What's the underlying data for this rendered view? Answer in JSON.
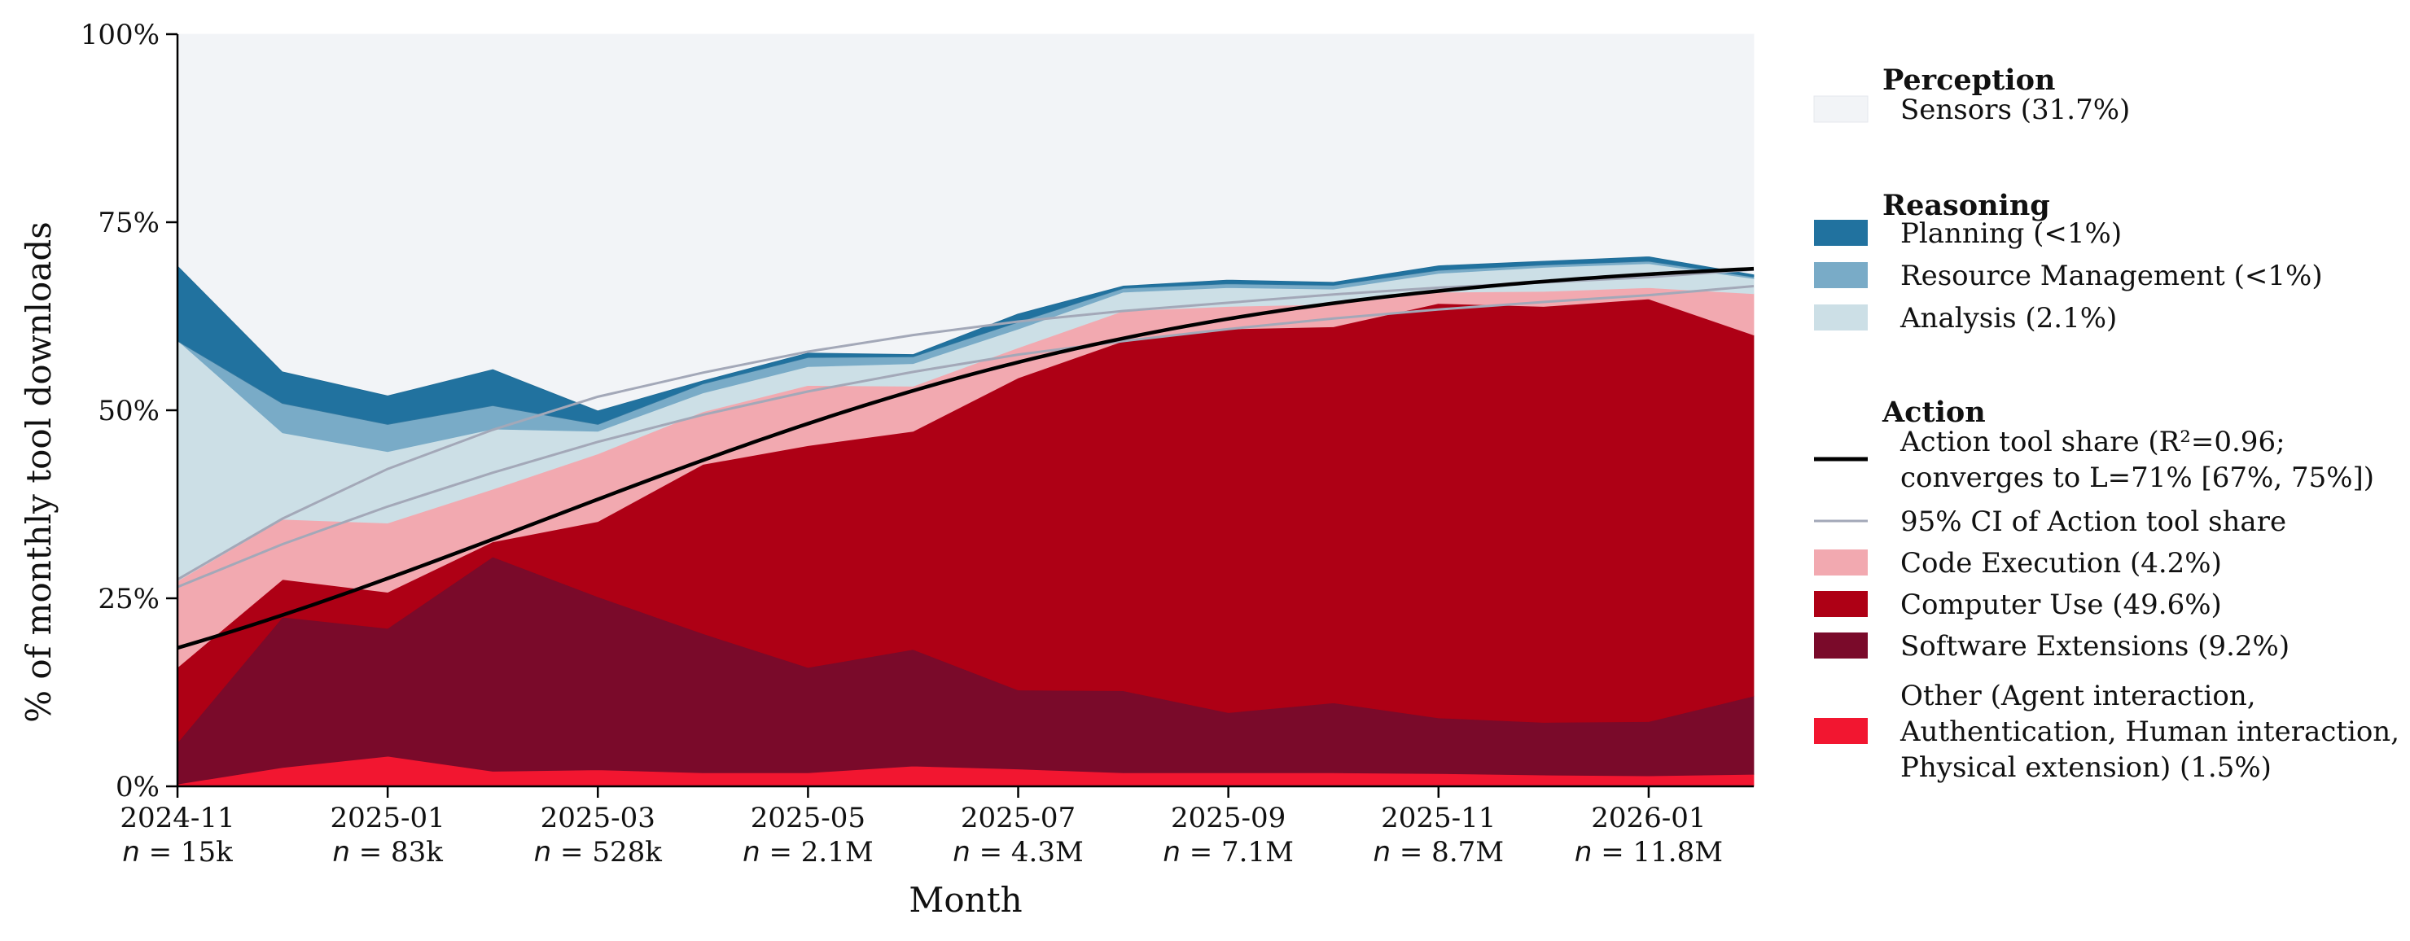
{
  "chart_data": {
    "type": "area",
    "subtype": "stacked-100-percent",
    "xlabel": "Month",
    "ylabel": "% of monthly tool downloads",
    "ylim": [
      0,
      100
    ],
    "y_ticks": [
      "0%",
      "25%",
      "50%",
      "75%",
      "100%"
    ],
    "y_tick_values": [
      0,
      25,
      50,
      75,
      100
    ],
    "months": [
      "2024-11",
      "2024-12",
      "2025-01",
      "2025-02",
      "2025-03",
      "2025-04",
      "2025-05",
      "2025-06",
      "2025-07",
      "2025-08",
      "2025-09",
      "2025-10",
      "2025-11",
      "2025-12",
      "2026-01",
      "2026-02"
    ],
    "x_ticks": [
      {
        "index": 0,
        "label": "2024-11",
        "n_prefix": "n",
        "n_value": "= 15k"
      },
      {
        "index": 2,
        "label": "2025-01",
        "n_prefix": "n",
        "n_value": "= 83k"
      },
      {
        "index": 4,
        "label": "2025-03",
        "n_prefix": "n",
        "n_value": "= 528k"
      },
      {
        "index": 6,
        "label": "2025-05",
        "n_prefix": "n",
        "n_value": "= 2.1M"
      },
      {
        "index": 8,
        "label": "2025-07",
        "n_prefix": "n",
        "n_value": "= 4.3M"
      },
      {
        "index": 10,
        "label": "2025-09",
        "n_prefix": "n",
        "n_value": "= 7.1M"
      },
      {
        "index": 12,
        "label": "2025-11",
        "n_prefix": "n",
        "n_value": "= 8.7M"
      },
      {
        "index": 14,
        "label": "2026-01",
        "n_prefix": "n",
        "n_value": "= 11.8M"
      }
    ],
    "series": [
      {
        "name": "Other (Agent interaction, Authentication, Human interaction, Physical extension)",
        "color": "#f21630",
        "values": [
          0.3,
          2.5,
          4.0,
          2.0,
          2.2,
          1.8,
          1.8,
          2.7,
          2.3,
          1.8,
          1.8,
          1.8,
          1.7,
          1.5,
          1.4,
          1.6
        ]
      },
      {
        "name": "Software Extensions",
        "color": "#7a0a2a",
        "values": [
          5.5,
          20.0,
          17.0,
          28.5,
          23.0,
          18.5,
          14.0,
          15.5,
          10.5,
          10.9,
          8.0,
          9.3,
          7.4,
          7.0,
          7.2,
          10.4
        ]
      },
      {
        "name": "Computer Use",
        "color": "#ae0015",
        "values": [
          10.0,
          5.0,
          4.8,
          2.0,
          10.0,
          22.5,
          29.5,
          29.0,
          41.5,
          46.5,
          51.0,
          50.0,
          55.1,
          55.3,
          56.2,
          48.0
        ]
      },
      {
        "name": "Code Execution",
        "color": "#f2a9b0",
        "values": [
          11.5,
          8.0,
          9.2,
          7.0,
          9.0,
          7.0,
          8.0,
          6.0,
          4.0,
          4.0,
          3.0,
          3.0,
          1.5,
          2.0,
          1.5,
          5.5
        ]
      },
      {
        "name": "Analysis",
        "color": "#ccdfe6",
        "values": [
          32.0,
          11.5,
          9.5,
          8.0,
          3.0,
          2.5,
          2.5,
          3.0,
          2.5,
          2.5,
          2.5,
          2.0,
          2.5,
          3.2,
          3.2,
          2.0
        ]
      },
      {
        "name": "Resource Management",
        "color": "#79abc7",
        "values": [
          0.0,
          4.0,
          3.7,
          3.2,
          1.0,
          1.3,
          1.3,
          1.0,
          1.0,
          0.6,
          0.6,
          0.6,
          0.5,
          0.4,
          0.4,
          0.3
        ]
      },
      {
        "name": "Planning",
        "color": "#21729f",
        "values": [
          10.0,
          4.2,
          3.8,
          4.8,
          1.8,
          0.4,
          0.6,
          0.3,
          1.1,
          0.3,
          0.5,
          0.4,
          0.6,
          0.5,
          0.6,
          0.3
        ]
      },
      {
        "name": "Sensors",
        "color": "#f2f4f7",
        "values": [
          30.7,
          44.8,
          48.0,
          44.5,
          50.0,
          46.0,
          42.3,
          42.5,
          37.1,
          33.4,
          32.6,
          32.9,
          30.7,
          30.1,
          29.5,
          31.9
        ]
      }
    ],
    "fit_line": {
      "name": "Action tool share",
      "type": "logistic",
      "L": 71,
      "k": 0.3,
      "x0": 3.5,
      "r_squared": 0.96,
      "ci_upper": [
        27.5,
        35.6,
        42.2,
        47.4,
        51.8,
        55.0,
        57.8,
        60.0,
        61.8,
        63.2,
        64.3,
        65.4,
        66.3,
        67.0,
        67.7,
        68.7
      ],
      "ci_lower": [
        26.5,
        32.2,
        37.2,
        41.7,
        45.8,
        49.4,
        52.5,
        55.1,
        57.4,
        59.2,
        60.8,
        62.2,
        63.4,
        64.4,
        65.3,
        66.5
      ]
    },
    "legend_position": "right"
  },
  "legend": {
    "groups": [
      {
        "title": "Perception",
        "items": [
          {
            "kind": "patch",
            "color": "#f2f4f7",
            "lines": [
              "Sensors (31.7%)"
            ]
          }
        ]
      },
      {
        "title": "Reasoning",
        "items": [
          {
            "kind": "patch",
            "color": "#21729f",
            "lines": [
              "Planning (<1%)"
            ]
          },
          {
            "kind": "patch",
            "color": "#79abc7",
            "lines": [
              "Resource Management (<1%)"
            ]
          },
          {
            "kind": "patch",
            "color": "#ccdfe6",
            "lines": [
              "Analysis (2.1%)"
            ]
          }
        ]
      },
      {
        "title": "Action",
        "items": [
          {
            "kind": "line",
            "color": "#000000",
            "lines": [
              "Action tool share (R²=0.96;",
              "converges to L=71% [67%, 75%])"
            ]
          },
          {
            "kind": "thinline",
            "color": "#a3a8b8",
            "lines": [
              "95% CI of Action tool share"
            ]
          },
          {
            "kind": "patch",
            "color": "#f2a9b0",
            "lines": [
              "Code Execution (4.2%)"
            ]
          },
          {
            "kind": "patch",
            "color": "#ae0015",
            "lines": [
              "Computer Use (49.6%)"
            ]
          },
          {
            "kind": "patch",
            "color": "#7a0a2a",
            "lines": [
              "Software Extensions (9.2%)"
            ]
          },
          {
            "kind": "patch",
            "color": "#f21630",
            "lines": [
              "Other (Agent interaction,",
              "Authentication, Human interaction,",
              "Physical extension) (1.5%)"
            ]
          }
        ]
      }
    ]
  }
}
